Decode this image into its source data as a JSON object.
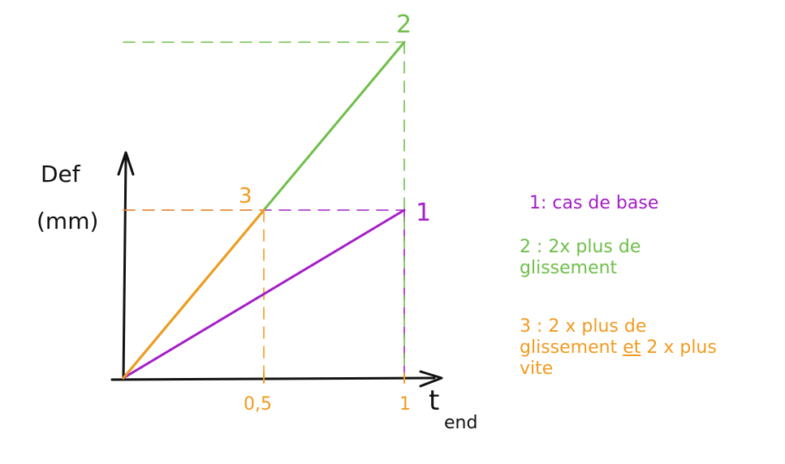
{
  "colors": {
    "axis": "#111111",
    "purple": "#a41fc7",
    "green": "#6fbf4a",
    "orange": "#f29a1f"
  },
  "chart_data": {
    "type": "line",
    "ylabel_line1": "Def",
    "ylabel_line2": "(mm)",
    "xlabel_main": "t",
    "xlabel_sub": "end",
    "x_ticks": [
      {
        "value": 0.5,
        "label": "0,5"
      },
      {
        "value": 1,
        "label": "1"
      }
    ],
    "xlim": [
      0,
      1.1
    ],
    "ylim": [
      0,
      2.15
    ],
    "series": [
      {
        "key": "1",
        "label": "1",
        "color": "#a41fc7",
        "x": [
          0,
          1
        ],
        "y": [
          0,
          1
        ]
      },
      {
        "key": "2",
        "label": "2",
        "color": "#6fbf4a",
        "x": [
          0,
          1
        ],
        "y": [
          0,
          2
        ]
      },
      {
        "key": "3",
        "label": "3",
        "color": "#f29a1f",
        "x": [
          0,
          0.5
        ],
        "y": [
          0,
          1
        ]
      }
    ]
  },
  "legend": {
    "item1": {
      "text": "1: cas de base"
    },
    "item2": {
      "text": "2 : 2x plus de glissement"
    },
    "item3": {
      "text_a": "3 : 2 x plus de glissement ",
      "text_et": "et",
      "text_b": " 2 x plus vite"
    }
  }
}
